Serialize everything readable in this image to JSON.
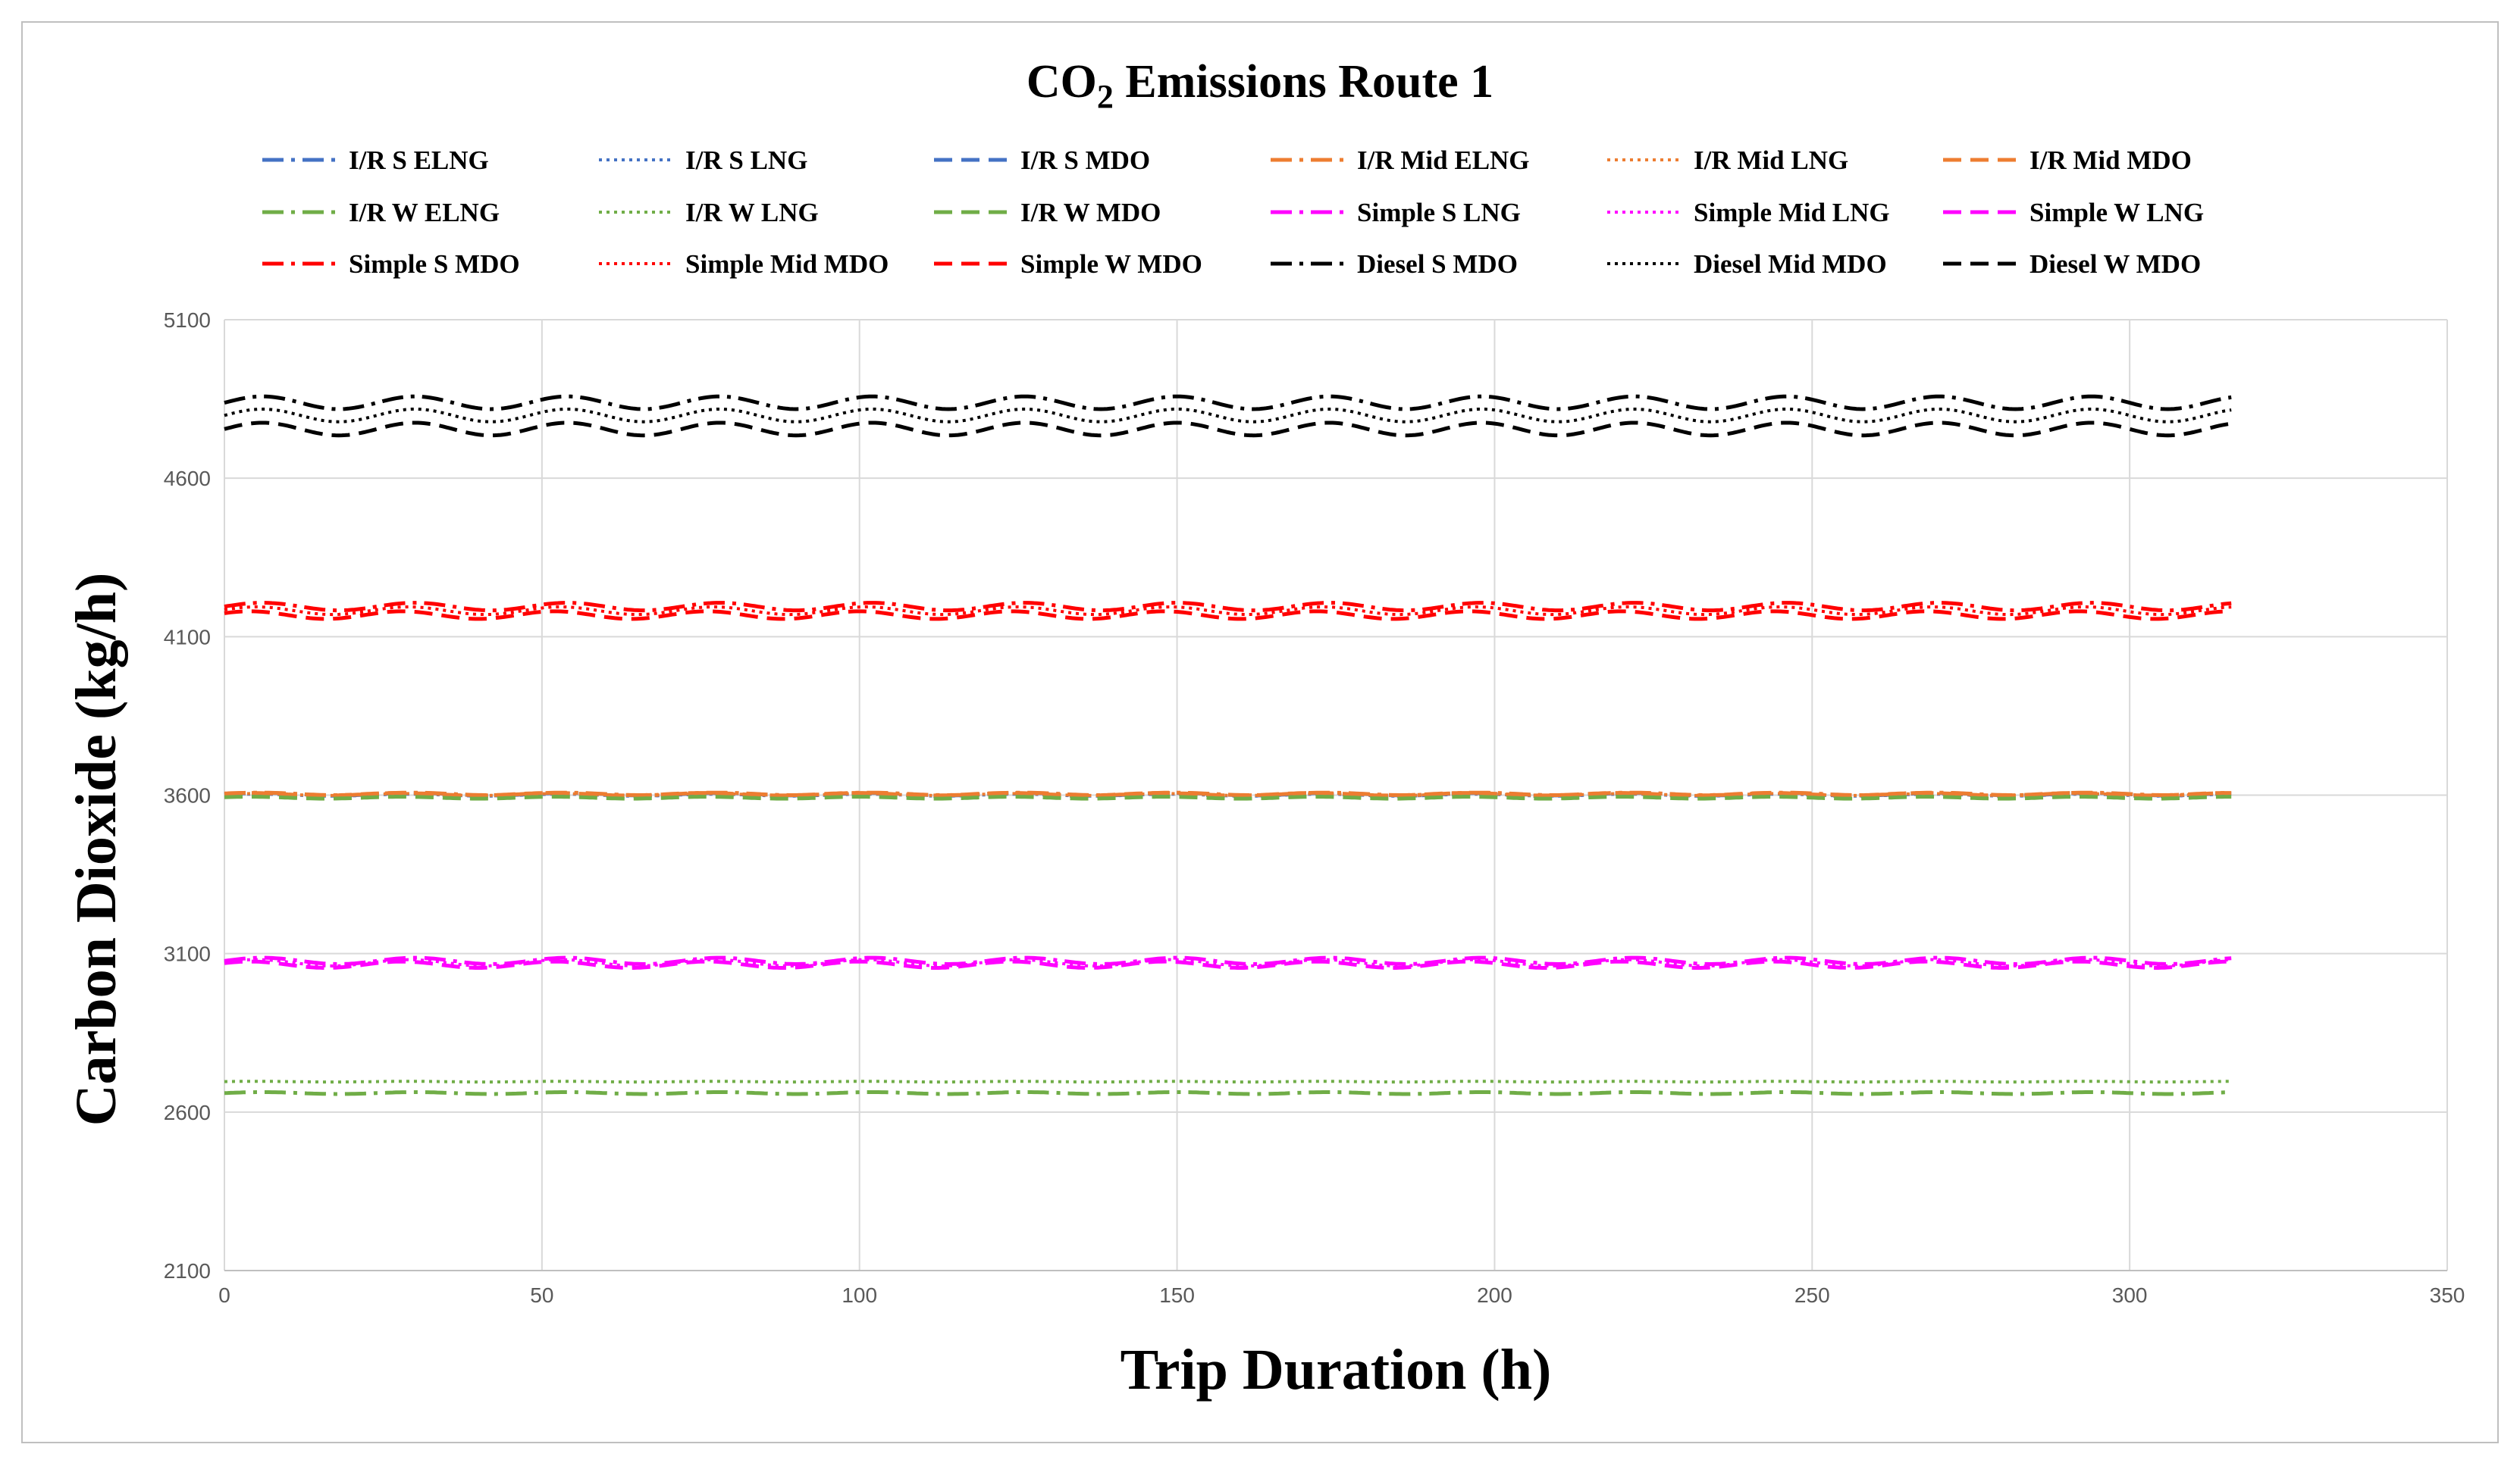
{
  "chart_data": {
    "type": "line",
    "title": "CO",
    "title_subscript": "2",
    "title_rest": " Emissions Route 1",
    "xlabel": "Trip Duration (h)",
    "ylabel": "Carbon Dioxide (kg/h)",
    "xlim": [
      0,
      350
    ],
    "ylim": [
      2100,
      5100
    ],
    "xticks": [
      "0",
      "50",
      "100",
      "150",
      "200",
      "250",
      "300",
      "350"
    ],
    "yticks": [
      "2100",
      "2600",
      "3100",
      "3600",
      "4100",
      "4600",
      "5100"
    ],
    "grid": true,
    "legend_position": "top",
    "x_range": [
      0,
      316
    ],
    "series": [
      {
        "name": "I/R S ELNG",
        "color": "#4472c4",
        "dash": "dashdot",
        "base": 3603,
        "amp": 4,
        "period": 24,
        "phase": 0
      },
      {
        "name": "I/R S LNG",
        "color": "#4472c4",
        "dash": "dot",
        "base": 3600,
        "amp": 3,
        "period": 24,
        "phase": 1
      },
      {
        "name": "I/R S MDO",
        "color": "#4472c4",
        "dash": "dash",
        "base": 3601,
        "amp": 4,
        "period": 24,
        "phase": 2
      },
      {
        "name": "I/R Mid ELNG",
        "color": "#ed7d31",
        "dash": "dashdot",
        "base": 3604,
        "amp": 4,
        "period": 24,
        "phase": 0.5
      },
      {
        "name": "I/R Mid LNG",
        "color": "#ed7d31",
        "dash": "dot",
        "base": 3602,
        "amp": 3,
        "period": 24,
        "phase": 1.5
      },
      {
        "name": "I/R Mid MDO",
        "color": "#ed7d31",
        "dash": "dash",
        "base": 3603,
        "amp": 4,
        "period": 24,
        "phase": 2.5
      },
      {
        "name": "I/R W ELNG",
        "color": "#70ad47",
        "dash": "dashdot",
        "base": 2660,
        "amp": 3,
        "period": 24,
        "phase": 0
      },
      {
        "name": "I/R W LNG",
        "color": "#70ad47",
        "dash": "dot",
        "base": 2696,
        "amp": 1,
        "period": 24,
        "phase": 1
      },
      {
        "name": "I/R W MDO",
        "color": "#70ad47",
        "dash": "dash",
        "base": 3592,
        "amp": 3,
        "period": 24,
        "phase": 2
      },
      {
        "name": "Simple S LNG",
        "color": "#ff00ff",
        "dash": "dashdot",
        "base": 3077,
        "amp": 10,
        "period": 24,
        "phase": 0
      },
      {
        "name": "Simple Mid LNG",
        "color": "#ff00ff",
        "dash": "dot",
        "base": 3071,
        "amp": 10,
        "period": 24,
        "phase": 1
      },
      {
        "name": "Simple W LNG",
        "color": "#ff00ff",
        "dash": "dash",
        "base": 3065,
        "amp": 10,
        "period": 24,
        "phase": 2
      },
      {
        "name": "Simple S MDO",
        "color": "#ff0000",
        "dash": "dashdot",
        "base": 4195,
        "amp": 12,
        "period": 24,
        "phase": 0
      },
      {
        "name": "Simple Mid MDO",
        "color": "#ff0000",
        "dash": "dot",
        "base": 4182,
        "amp": 12,
        "period": 24,
        "phase": 1
      },
      {
        "name": "Simple W MDO",
        "color": "#ff0000",
        "dash": "dash",
        "base": 4168,
        "amp": 12,
        "period": 24,
        "phase": 2
      },
      {
        "name": "Diesel S MDO",
        "color": "#000000",
        "dash": "dashdot",
        "base": 4838,
        "amp": 20,
        "period": 24,
        "phase": 0
      },
      {
        "name": "Diesel Mid MDO",
        "color": "#000000",
        "dash": "dot",
        "base": 4798,
        "amp": 20,
        "period": 24,
        "phase": 0
      },
      {
        "name": "Diesel W MDO",
        "color": "#000000",
        "dash": "dash",
        "base": 4755,
        "amp": 20,
        "period": 24,
        "phase": 0
      }
    ]
  }
}
